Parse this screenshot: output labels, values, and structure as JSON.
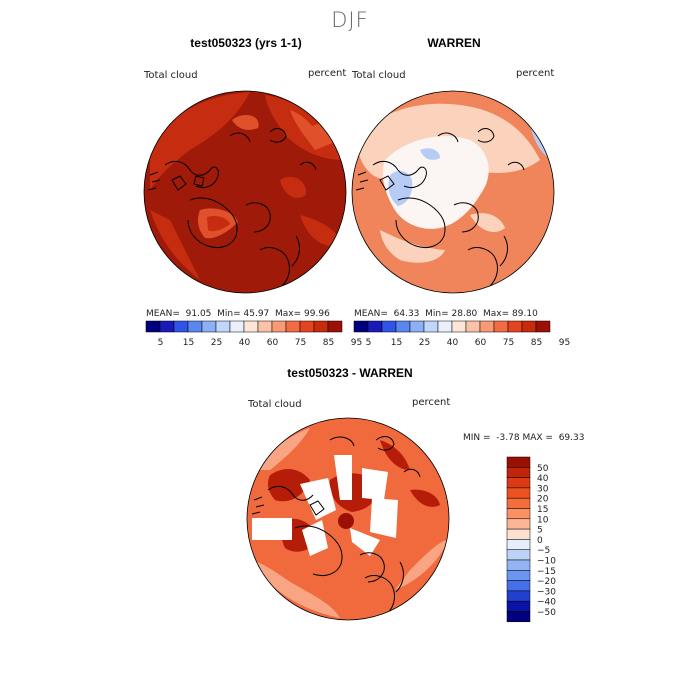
{
  "season": "DJF",
  "panels": [
    {
      "title": "test050323 (yrs 1-1)",
      "field": "Total cloud",
      "units": "percent",
      "stats": {
        "mean_label": "MEAN=",
        "mean": "91.05",
        "min_label": "Min=",
        "min": "45.97",
        "max_label": "Max=",
        "max": "99.96"
      }
    },
    {
      "title": "WARREN",
      "field": "Total cloud",
      "units": "percent",
      "stats": {
        "mean_label": "MEAN=",
        "mean": "64.33",
        "min_label": "Min=",
        "min": "28.80",
        "max_label": "Max=",
        "max": "89.10"
      }
    },
    {
      "title": "test050323 - WARREN",
      "field": "Total cloud",
      "units": "percent",
      "stats": {
        "min_label": "MIN =",
        "min": "-3.78",
        "max_label": "MAX =",
        "max": "69.33"
      }
    }
  ],
  "colorbar_field": {
    "labels": [
      "5",
      "15",
      "25",
      "40",
      "60",
      "75",
      "85",
      "95"
    ],
    "colors": [
      "#00007f",
      "#1a1ab8",
      "#2f55e6",
      "#5a86f0",
      "#8cb0f5",
      "#c0d6fa",
      "#e9f0fb",
      "#fde5d7",
      "#fcc2a6",
      "#f99a76",
      "#f26b43",
      "#e4441f",
      "#c82a0c",
      "#9b1005"
    ]
  },
  "colorbar_diff": {
    "labels": [
      "50",
      "40",
      "30",
      "20",
      "15",
      "10",
      "5",
      "0",
      "−5",
      "−10",
      "−15",
      "−20",
      "−30",
      "−40",
      "−50"
    ],
    "colors": [
      "#9b1005",
      "#c0250b",
      "#dc3a12",
      "#ec5220",
      "#f36e3c",
      "#f99163",
      "#fcb693",
      "#fde0d0",
      "#e6eefb",
      "#bcd3f7",
      "#92b4f3",
      "#6c95ef",
      "#456fe8",
      "#2140d0",
      "#0a13a6",
      "#00007f"
    ]
  },
  "map_colors": {
    "panel1_base": "#9f1a08",
    "panel1_mid": "#c62c10",
    "panel1_light": "#e0502a",
    "panel2_base": "#f0855c",
    "panel2_light": "#fbd3bd",
    "panel2_white": "#fbf6f3",
    "panel2_blue": "#b7ccf5",
    "panel3_base": "#f06a3e",
    "panel3_dark": "#b51d08",
    "panel3_light": "#f9a584"
  }
}
